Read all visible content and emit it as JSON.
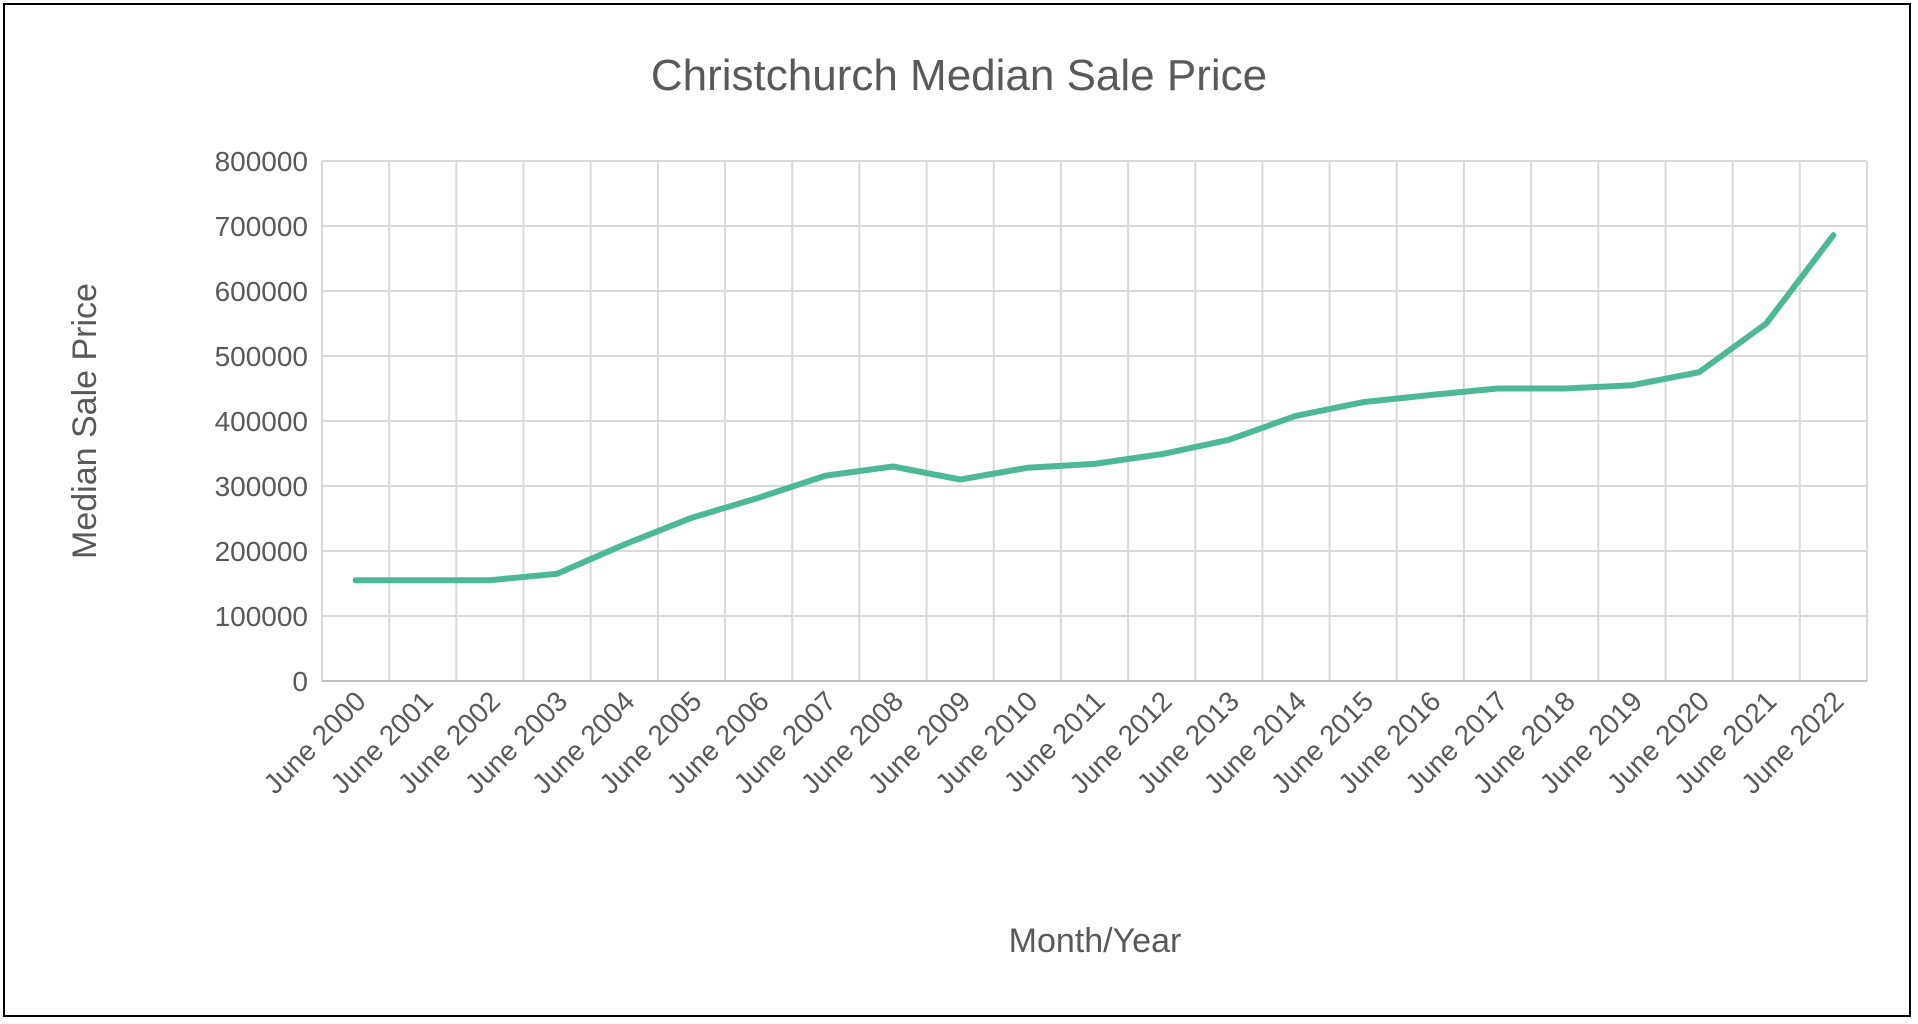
{
  "chart_data": {
    "type": "line",
    "title": "Christchurch Median Sale Price",
    "xlabel": "Month/Year",
    "ylabel": "Median Sale Price",
    "ylim": [
      0,
      800000
    ],
    "yticks": [
      "0",
      "100000",
      "200000",
      "300000",
      "400000",
      "500000",
      "600000",
      "700000",
      "800000"
    ],
    "grid": true,
    "legend": "none",
    "line_color": "#4DB898",
    "categories": [
      "June 2000",
      "June 2001",
      "June 2002",
      "June 2003",
      "June 2004",
      "June 2005",
      "June 2006",
      "June 2007",
      "June 2008",
      "June 2009",
      "June 2010",
      "June 2011",
      "June 2012",
      "June 2013",
      "June 2014",
      "June 2015",
      "June 2016",
      "June 2017",
      "June 2018",
      "June 2019",
      "June 2020",
      "June 2021",
      "June 2022"
    ],
    "series": [
      {
        "values": [
          155000,
          155000,
          155000,
          165000,
          210000,
          251000,
          282000,
          316000,
          330000,
          310000,
          328000,
          334000,
          349000,
          371000,
          408000,
          429000,
          440000,
          450000,
          450000,
          455000,
          475000,
          550000,
          686000
        ]
      }
    ]
  }
}
